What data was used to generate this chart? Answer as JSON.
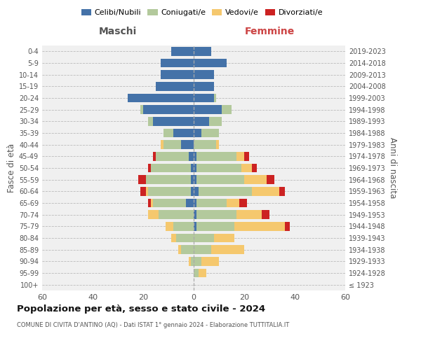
{
  "age_groups": [
    "100+",
    "95-99",
    "90-94",
    "85-89",
    "80-84",
    "75-79",
    "70-74",
    "65-69",
    "60-64",
    "55-59",
    "50-54",
    "45-49",
    "40-44",
    "35-39",
    "30-34",
    "25-29",
    "20-24",
    "15-19",
    "10-14",
    "5-9",
    "0-4"
  ],
  "birth_years": [
    "≤ 1923",
    "1924-1928",
    "1929-1933",
    "1934-1938",
    "1939-1943",
    "1944-1948",
    "1949-1953",
    "1954-1958",
    "1959-1963",
    "1964-1968",
    "1969-1973",
    "1974-1978",
    "1979-1983",
    "1984-1988",
    "1989-1993",
    "1994-1998",
    "1999-2003",
    "2004-2008",
    "2009-2013",
    "2014-2018",
    "2019-2023"
  ],
  "males": {
    "celibi": [
      0,
      0,
      0,
      0,
      0,
      0,
      0,
      3,
      1,
      1,
      1,
      2,
      5,
      8,
      16,
      20,
      26,
      15,
      13,
      13,
      9
    ],
    "coniugati": [
      0,
      0,
      1,
      5,
      7,
      8,
      14,
      13,
      17,
      18,
      16,
      13,
      7,
      4,
      2,
      1,
      0,
      0,
      0,
      0,
      0
    ],
    "vedovi": [
      0,
      0,
      1,
      1,
      2,
      3,
      4,
      1,
      1,
      0,
      0,
      0,
      1,
      0,
      0,
      0,
      0,
      0,
      0,
      0,
      0
    ],
    "divorziati": [
      0,
      0,
      0,
      0,
      0,
      0,
      0,
      1,
      2,
      3,
      1,
      1,
      0,
      0,
      0,
      0,
      0,
      0,
      0,
      0,
      0
    ]
  },
  "females": {
    "nubili": [
      0,
      0,
      0,
      0,
      0,
      1,
      1,
      1,
      2,
      1,
      1,
      1,
      0,
      3,
      6,
      11,
      8,
      8,
      8,
      13,
      7
    ],
    "coniugate": [
      0,
      2,
      3,
      7,
      8,
      15,
      16,
      12,
      21,
      19,
      18,
      16,
      9,
      7,
      5,
      4,
      1,
      0,
      0,
      0,
      0
    ],
    "vedove": [
      0,
      3,
      7,
      13,
      8,
      20,
      10,
      5,
      11,
      9,
      4,
      3,
      1,
      0,
      0,
      0,
      0,
      0,
      0,
      0,
      0
    ],
    "divorziate": [
      0,
      0,
      0,
      0,
      0,
      2,
      3,
      3,
      2,
      3,
      2,
      2,
      0,
      0,
      0,
      0,
      0,
      0,
      0,
      0,
      0
    ]
  },
  "colors": {
    "celibi": "#4472a8",
    "coniugati": "#b3c99c",
    "vedovi": "#f5c86e",
    "divorziati": "#cc2222"
  },
  "xlim": 60,
  "title": "Popolazione per età, sesso e stato civile - 2024",
  "subtitle": "COMUNE DI CIVITA D'ANTINO (AQ) - Dati ISTAT 1° gennaio 2024 - Elaborazione TUTTITALIA.IT",
  "ylabel_left": "Fasce di età",
  "ylabel_right": "Anni di nascita",
  "xlabel_left": "Maschi",
  "xlabel_right": "Femmine",
  "legend_labels": [
    "Celibi/Nubili",
    "Coniugati/e",
    "Vedovi/e",
    "Divorziati/e"
  ],
  "bg_color": "#f0f0f0",
  "maschi_color": "#555555",
  "femmine_color": "#cc4444"
}
